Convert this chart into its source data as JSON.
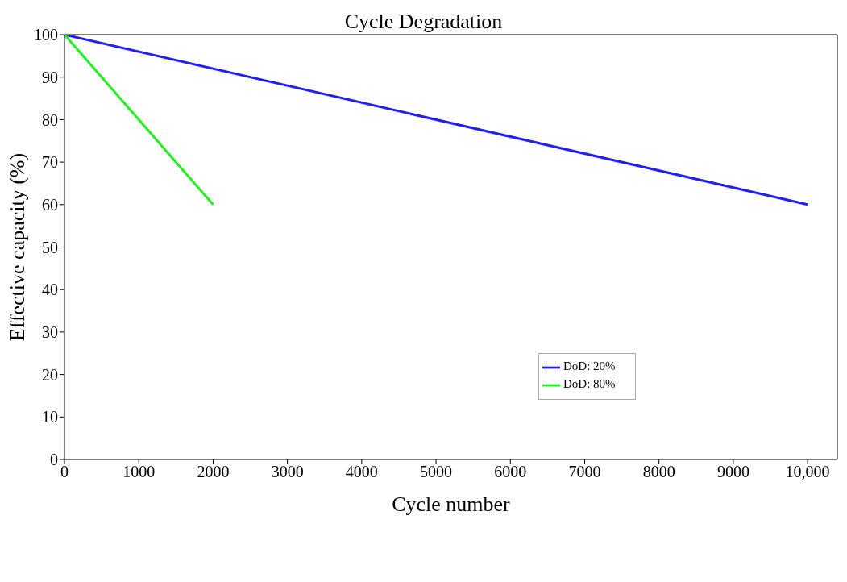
{
  "chart_data": {
    "type": "line",
    "title": "Cycle Degradation",
    "xlabel": "Cycle number",
    "ylabel": "Effective capacity (%)",
    "series": [
      {
        "name": "DoD: 20%",
        "color": "#2020f0",
        "x": [
          0,
          10000
        ],
        "values": [
          100,
          60
        ]
      },
      {
        "name": "DoD: 80%",
        "color": "#20f020",
        "x": [
          0,
          2000
        ],
        "values": [
          100,
          60
        ]
      }
    ],
    "xlim": [
      0,
      10400
    ],
    "xticks": [
      0,
      1000,
      2000,
      3000,
      4000,
      5000,
      6000,
      7000,
      8000,
      9000,
      {
        "value": 10000,
        "label": "10,000"
      }
    ],
    "ylim": [
      0,
      100
    ],
    "yticks": [
      0,
      10,
      20,
      30,
      40,
      50,
      60,
      70,
      80,
      90,
      100
    ],
    "grid": false,
    "legend": "right",
    "marker": "none",
    "line_style": "solid"
  }
}
